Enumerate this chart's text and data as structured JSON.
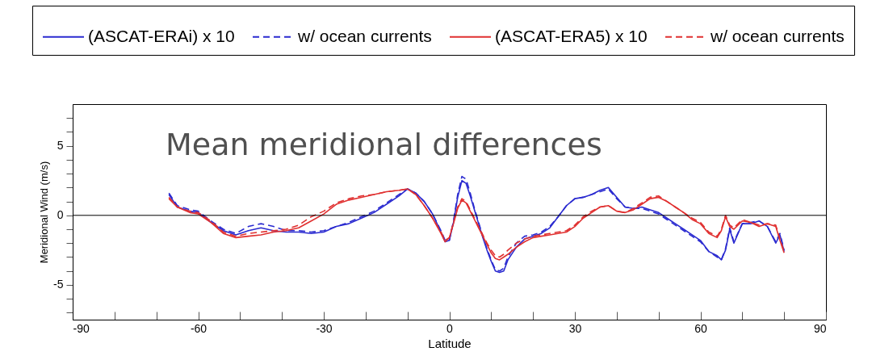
{
  "chart_data": {
    "type": "line",
    "title": "Mean meridional differences",
    "xlabel": "Latitude",
    "ylabel": "Meridional Wind (m/s)",
    "x": [
      -67,
      -65,
      -62,
      -60,
      -57,
      -54,
      -51,
      -48,
      -45,
      -42,
      -39,
      -36,
      -33,
      -30,
      -27,
      -24,
      -21,
      -18,
      -15,
      -12,
      -10,
      -8,
      -6,
      -4,
      -2,
      -1,
      0,
      1,
      2,
      3,
      4,
      5,
      6,
      7,
      8,
      9,
      10,
      11,
      12,
      13,
      14,
      16,
      18,
      20,
      22,
      24,
      26,
      28,
      30,
      32,
      34,
      36,
      38,
      40,
      42,
      44,
      46,
      48,
      50,
      52,
      54,
      56,
      58,
      60,
      62,
      64,
      65,
      66,
      67,
      68,
      70,
      72,
      74,
      76,
      78,
      79,
      80
    ],
    "series": [
      {
        "name": "(ASCAT-ERAi) x 10",
        "color": "#2b2bd0",
        "line_style": "solid",
        "values": [
          1.5,
          0.6,
          0.3,
          0.2,
          -0.5,
          -1.1,
          -1.4,
          -1.1,
          -0.9,
          -1.1,
          -1.2,
          -1.2,
          -1.3,
          -1.2,
          -0.8,
          -0.6,
          -0.2,
          0.2,
          0.8,
          1.4,
          1.9,
          1.6,
          1.0,
          0.1,
          -1.2,
          -1.9,
          -1.8,
          -0.5,
          1.3,
          2.5,
          2.3,
          1.4,
          0.4,
          -0.6,
          -1.6,
          -2.5,
          -3.3,
          -4.0,
          -4.1,
          -4.0,
          -3.2,
          -2.3,
          -1.7,
          -1.5,
          -1.3,
          -0.9,
          -0.1,
          0.7,
          1.2,
          1.3,
          1.5,
          1.8,
          2.0,
          1.3,
          0.6,
          0.5,
          0.6,
          0.4,
          0.2,
          -0.2,
          -0.6,
          -1.0,
          -1.4,
          -1.8,
          -2.6,
          -2.9,
          -3.2,
          -2.5,
          -1.0,
          -2.0,
          -0.6,
          -0.6,
          -0.4,
          -0.8,
          -2.0,
          -1.4,
          -2.6
        ]
      },
      {
        "name": "w/ ocean currents",
        "color": "#2b2bd0",
        "line_style": "dashed",
        "values": [
          1.6,
          0.7,
          0.4,
          0.3,
          -0.4,
          -1.0,
          -1.3,
          -0.8,
          -0.6,
          -0.8,
          -1.1,
          -1.1,
          -1.2,
          -1.1,
          -0.8,
          -0.5,
          -0.1,
          0.3,
          0.9,
          1.5,
          1.9,
          1.6,
          1.0,
          0.1,
          -1.1,
          -1.8,
          -1.8,
          -0.4,
          1.5,
          2.8,
          2.6,
          1.6,
          0.5,
          -0.5,
          -1.5,
          -2.4,
          -3.2,
          -3.9,
          -4.0,
          -3.8,
          -3.0,
          -2.0,
          -1.5,
          -1.4,
          -1.2,
          -0.8,
          -0.1,
          0.7,
          1.2,
          1.3,
          1.5,
          1.7,
          1.9,
          1.2,
          0.6,
          0.5,
          0.5,
          0.3,
          0.1,
          -0.3,
          -0.7,
          -1.1,
          -1.5,
          -1.9,
          -2.6,
          -3.0,
          -3.2,
          -2.4,
          -0.9,
          -1.9,
          -0.6,
          -0.5,
          -0.4,
          -0.8,
          -1.9,
          -1.3,
          -2.5
        ]
      },
      {
        "name": "(ASCAT-ERA5) x 10",
        "color": "#e03030",
        "line_style": "solid",
        "values": [
          1.2,
          0.6,
          0.2,
          0.1,
          -0.5,
          -1.3,
          -1.6,
          -1.5,
          -1.4,
          -1.2,
          -1.1,
          -0.9,
          -0.4,
          0.1,
          0.8,
          1.1,
          1.3,
          1.5,
          1.7,
          1.8,
          1.9,
          1.5,
          0.7,
          -0.2,
          -1.3,
          -1.9,
          -1.6,
          -0.6,
          0.5,
          1.1,
          0.9,
          0.3,
          -0.3,
          -0.9,
          -1.5,
          -2.1,
          -2.7,
          -3.1,
          -3.2,
          -3.0,
          -2.8,
          -2.3,
          -1.9,
          -1.6,
          -1.5,
          -1.4,
          -1.3,
          -1.2,
          -0.8,
          -0.2,
          0.2,
          0.6,
          0.7,
          0.3,
          0.2,
          0.4,
          0.8,
          1.2,
          1.3,
          1.0,
          0.6,
          0.2,
          -0.3,
          -0.6,
          -1.3,
          -1.6,
          -1.1,
          -0.1,
          -0.8,
          -1.0,
          -0.4,
          -0.5,
          -0.8,
          -0.6,
          -0.8,
          -1.8,
          -2.7
        ]
      },
      {
        "name": "w/ ocean currents",
        "color": "#e03030",
        "line_style": "dashed",
        "values": [
          1.3,
          0.6,
          0.3,
          0.2,
          -0.4,
          -1.2,
          -1.5,
          -1.3,
          -1.2,
          -1.1,
          -1.0,
          -0.7,
          -0.1,
          0.3,
          0.9,
          1.2,
          1.4,
          1.5,
          1.7,
          1.8,
          1.9,
          1.5,
          0.7,
          -0.2,
          -1.2,
          -1.8,
          -1.6,
          -0.5,
          0.6,
          1.2,
          1.0,
          0.4,
          -0.2,
          -0.8,
          -1.4,
          -2.0,
          -2.5,
          -2.9,
          -3.0,
          -2.8,
          -2.5,
          -2.0,
          -1.7,
          -1.5,
          -1.4,
          -1.3,
          -1.2,
          -1.1,
          -0.7,
          -0.1,
          0.3,
          0.6,
          0.7,
          0.3,
          0.2,
          0.5,
          0.9,
          1.3,
          1.4,
          1.0,
          0.6,
          0.2,
          -0.2,
          -0.5,
          -1.2,
          -1.5,
          -1.0,
          0.0,
          -0.7,
          -0.9,
          -0.3,
          -0.5,
          -0.7,
          -0.6,
          -0.7,
          -1.7,
          -2.6
        ]
      }
    ],
    "xlim": [
      -90,
      90
    ],
    "ylim": [
      -7.5,
      8
    ],
    "xticks": [
      -90,
      {
        "value": -80,
        "label": null
      },
      {
        "value": -70,
        "label": null
      },
      -60,
      {
        "value": -50,
        "label": null
      },
      {
        "value": -40,
        "label": null
      },
      -30,
      {
        "value": -20,
        "label": null
      },
      {
        "value": -10,
        "label": null
      },
      0,
      {
        "value": 10,
        "label": null
      },
      {
        "value": 20,
        "label": null
      },
      30,
      {
        "value": 40,
        "label": null
      },
      {
        "value": 50,
        "label": null
      },
      60,
      {
        "value": 70,
        "label": null
      },
      {
        "value": 80,
        "label": null
      },
      90
    ],
    "yticks": [
      {
        "value": -7,
        "label": null
      },
      {
        "value": -6,
        "label": null
      },
      -5,
      {
        "value": -4,
        "label": null
      },
      {
        "value": -3,
        "label": null
      },
      {
        "value": -2,
        "label": null
      },
      {
        "value": -1,
        "label": null
      },
      0,
      {
        "value": 1,
        "label": null
      },
      {
        "value": 2,
        "label": null
      },
      {
        "value": 3,
        "label": null
      },
      {
        "value": 4,
        "label": null
      },
      5,
      {
        "value": 6,
        "label": null
      },
      {
        "value": 7,
        "label": null
      }
    ],
    "ref_lines": [
      {
        "axis": "y",
        "value": 0,
        "color": "#000000"
      }
    ],
    "grid": false,
    "legend": "top"
  }
}
